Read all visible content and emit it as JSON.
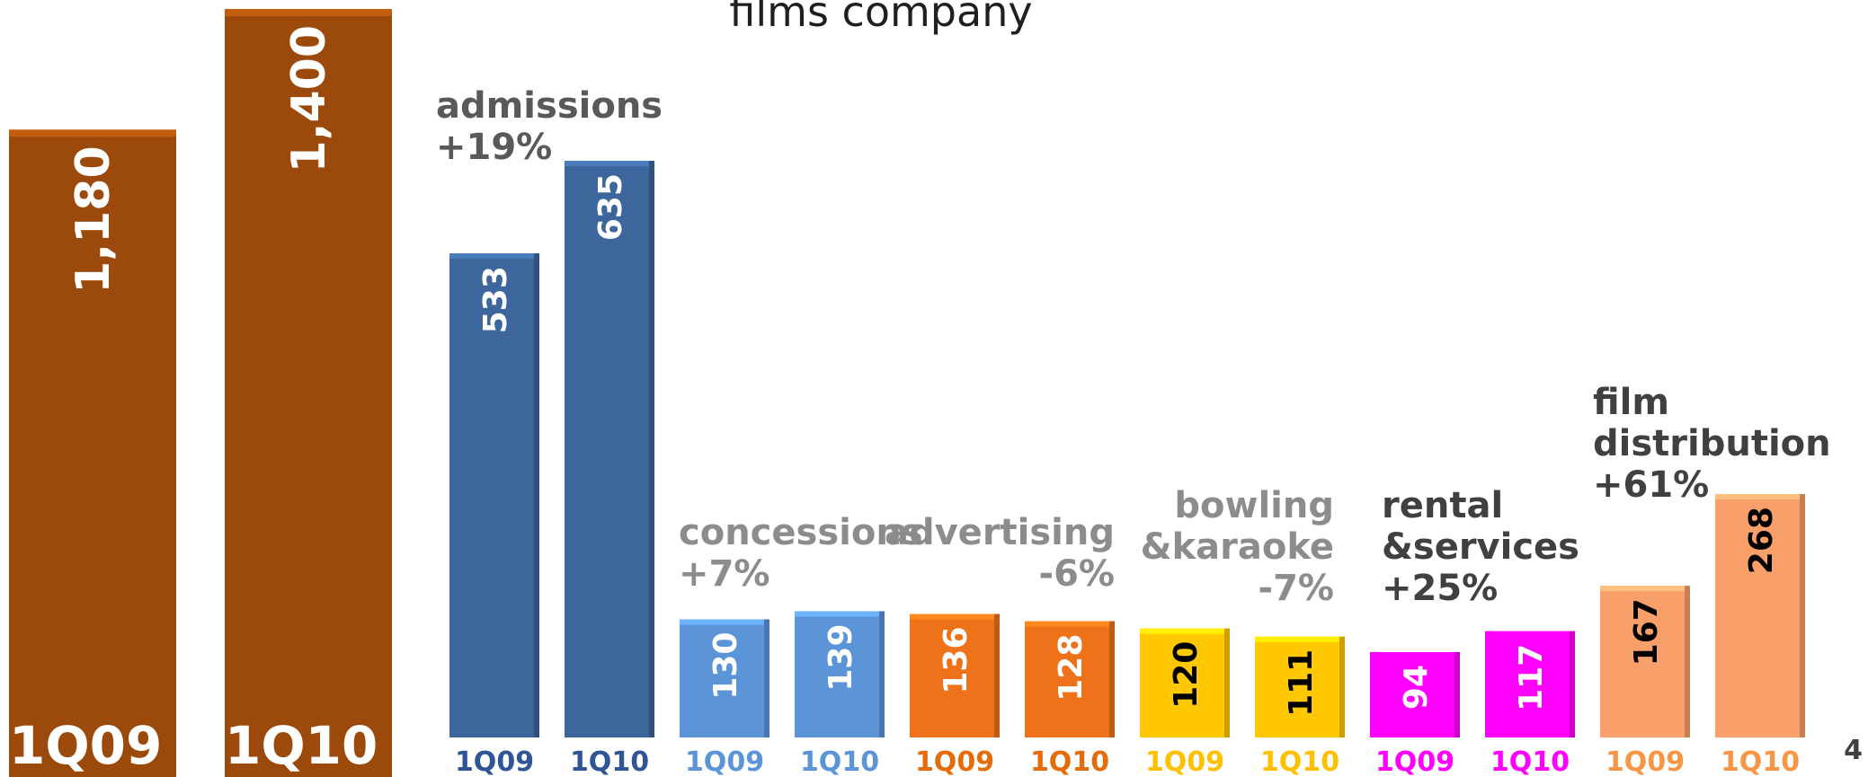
{
  "title": "films company",
  "page_number": "4",
  "chart_data": [
    {
      "type": "bar",
      "name_hint": "total",
      "categories": [
        "1Q09",
        "1Q10"
      ],
      "values": [
        1180,
        1400
      ],
      "value_labels": [
        "1,180",
        "1,400"
      ],
      "color": "#9c4a0c",
      "ylim": [
        0,
        1400
      ]
    },
    {
      "type": "bar",
      "segments": [
        {
          "label_lines": [
            "admissions",
            "+19%"
          ],
          "label_color": "#595959",
          "label_align": "left",
          "color": "#3d679c",
          "value_color": "#ffffff",
          "values": [
            533,
            635
          ],
          "tick_color": "#2f5597"
        },
        {
          "label_lines": [
            "concessions",
            "+7%"
          ],
          "label_color": "#8c8c8c",
          "label_align": "left",
          "color": "#5b95d8",
          "value_color": "#ffffff",
          "values": [
            130,
            139
          ],
          "tick_color": "#5b95d8"
        },
        {
          "label_lines": [
            "advertising",
            "-6%"
          ],
          "label_color": "#8c8c8c",
          "label_align": "right",
          "color": "#ee7219",
          "value_color": "#ffffff",
          "values": [
            136,
            128
          ],
          "tick_color": "#e46c0a"
        },
        {
          "label_lines": [
            "bowling",
            "&karaoke",
            "-7%"
          ],
          "label_color": "#8c8c8c",
          "label_align": "right",
          "color": "#ffc800",
          "value_color": "#000000",
          "values": [
            120,
            111
          ],
          "tick_color": "#ffc000"
        },
        {
          "label_lines": [
            "rental",
            "&services",
            "+25%"
          ],
          "label_color": "#404040",
          "label_align": "left",
          "color": "#ff00ff",
          "value_color": "#ffffff",
          "values": [
            94,
            117
          ],
          "tick_color": "#ff00ff"
        },
        {
          "label_lines": [
            "film",
            "distribution",
            "+61%"
          ],
          "label_color": "#404040",
          "label_align": "left",
          "color": "#f9a06a",
          "value_color": "#000000",
          "values": [
            167,
            268
          ],
          "tick_color": "#f79646"
        }
      ],
      "categories": [
        "1Q09",
        "1Q10"
      ],
      "ylim": [
        0,
        635
      ]
    }
  ]
}
